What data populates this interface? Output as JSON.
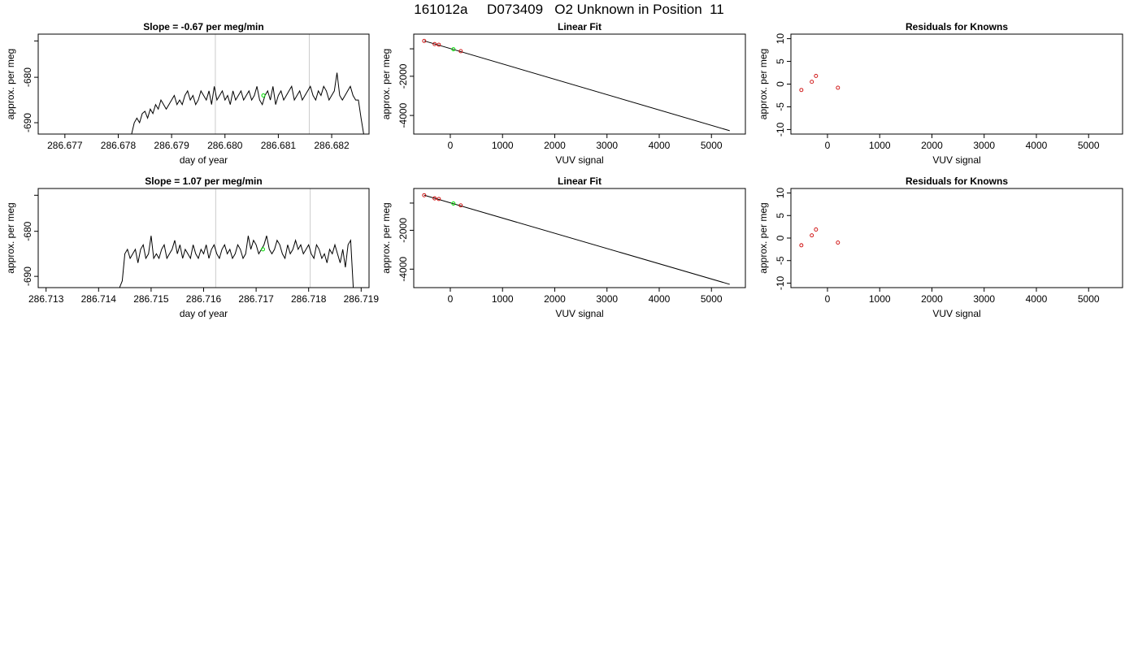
{
  "page_title": "161012a     D073409   O2 Unknown in Position  11",
  "colors": {
    "line": "#000000",
    "known_points": "#cc0000",
    "unknown_point": "#00dd00",
    "vline": "#cccccc"
  },
  "chart_data": [
    {
      "type": "line",
      "title": "Slope =  -0.67  per meg/min",
      "xlabel": "day of year",
      "ylabel": "approx. per meg",
      "xlim": [
        286.6765,
        286.6827
      ],
      "ylim": [
        -692.5,
        -670.5
      ],
      "xticks": [
        286.677,
        286.678,
        286.679,
        286.68,
        286.681,
        286.682
      ],
      "xtick_labels": [
        "286.677",
        "286.678",
        "286.679",
        "286.680",
        "286.681",
        "286.682"
      ],
      "yticks": [
        -690,
        -680,
        -672
      ],
      "ytick_labels": [
        "-690",
        "-680",
        ""
      ],
      "vlines": [
        286.67982,
        286.68158
      ],
      "unknown_point": {
        "x": 286.68072,
        "y": -684.0
      },
      "series": [
        {
          "x": [
            286.67825,
            286.6783,
            286.67835,
            286.6784,
            286.67845,
            286.6785,
            286.67855,
            286.6786,
            286.67865,
            286.6787,
            286.67875,
            286.6788,
            286.67885,
            286.6789,
            286.67895,
            286.679,
            286.67905,
            286.6791,
            286.67915,
            286.6792,
            286.67925,
            286.6793,
            286.67935,
            286.6794,
            286.67945,
            286.6795,
            286.67955,
            286.6796,
            286.67965,
            286.6797,
            286.67975,
            286.6798,
            286.67985,
            286.6799,
            286.67995,
            286.68,
            286.68005,
            286.6801,
            286.68015,
            286.6802,
            286.68025,
            286.6803,
            286.68035,
            286.6804,
            286.68045,
            286.6805,
            286.68055,
            286.6806,
            286.68065,
            286.6807,
            286.68075,
            286.6808,
            286.68085,
            286.6809,
            286.68095,
            286.681,
            286.68105,
            286.6811,
            286.68115,
            286.6812,
            286.68125,
            286.6813,
            286.68135,
            286.6814,
            286.68145,
            286.6815,
            286.68155,
            286.6816,
            286.68165,
            286.6817,
            286.68175,
            286.6818,
            286.68185,
            286.6819,
            286.68195,
            286.682,
            286.68205,
            286.6821,
            286.68215,
            286.6822,
            286.68225,
            286.6823,
            286.68235,
            286.6824,
            286.68245,
            286.6825,
            286.68255,
            286.6826
          ],
          "y": [
            -692.5,
            -690,
            -689,
            -690,
            -688,
            -687.5,
            -689,
            -687,
            -688,
            -686,
            -687,
            -685,
            -686,
            -687,
            -686,
            -685,
            -684,
            -686,
            -685,
            -686,
            -684,
            -683,
            -685,
            -684,
            -686,
            -685,
            -683,
            -684,
            -685,
            -683,
            -686,
            -682,
            -685,
            -684,
            -683,
            -685,
            -684,
            -686,
            -683,
            -685,
            -684,
            -683,
            -685,
            -684,
            -683,
            -685,
            -684,
            -682,
            -685,
            -686,
            -684,
            -683,
            -685,
            -682,
            -686,
            -684,
            -683,
            -685,
            -684,
            -683,
            -682,
            -685,
            -684,
            -683,
            -685,
            -684,
            -683,
            -682,
            -684,
            -685,
            -683,
            -684,
            -682,
            -683,
            -685,
            -684,
            -683,
            -679,
            -684,
            -685,
            -684,
            -683,
            -682,
            -684,
            -685,
            -685,
            -689,
            -692.5
          ]
        }
      ]
    },
    {
      "type": "scatter",
      "title": "Linear Fit",
      "xlabel": "VUV signal",
      "ylabel": "approx. per meg",
      "xlim": [
        -700,
        5650
      ],
      "ylim": [
        -4950,
        150
      ],
      "xticks": [
        0,
        1000,
        2000,
        3000,
        4000,
        5000
      ],
      "xtick_labels": [
        "0",
        "1000",
        "2000",
        "3000",
        "4000",
        "5000"
      ],
      "yticks": [
        -4000,
        -2000,
        -600
      ],
      "ytick_labels": [
        "-4000",
        "-2000",
        ""
      ],
      "fit_line": {
        "x": [
          -500,
          5350
        ],
        "y": [
          -195,
          -4780
        ]
      },
      "known_points": {
        "x": [
          -500,
          -300,
          -220,
          200
        ],
        "y": [
          -196,
          -357,
          -390,
          -720
        ]
      },
      "unknown_point": {
        "x": 60,
        "y": -622
      }
    },
    {
      "type": "scatter",
      "title": "Residuals for Knowns",
      "xlabel": "VUV signal",
      "ylabel": "approx. per meg",
      "xlim": [
        -700,
        5650
      ],
      "ylim": [
        -11,
        11
      ],
      "xticks": [
        0,
        1000,
        2000,
        3000,
        4000,
        5000
      ],
      "xtick_labels": [
        "0",
        "1000",
        "2000",
        "3000",
        "4000",
        "5000"
      ],
      "yticks": [
        -10,
        -5,
        0,
        5,
        10
      ],
      "ytick_labels": [
        "-10",
        "-5",
        "0",
        "5",
        "10"
      ],
      "known_points": {
        "x": [
          -500,
          -300,
          -220,
          200
        ],
        "y": [
          -1.3,
          0.5,
          1.8,
          -0.8
        ]
      }
    },
    {
      "type": "line",
      "title": "Slope =  1.07  per meg/min",
      "xlabel": "day of year",
      "ylabel": "approx. per meg",
      "xlim": [
        286.71285,
        286.71915
      ],
      "ylim": [
        -692.5,
        -670.5
      ],
      "xticks": [
        286.713,
        286.714,
        286.715,
        286.716,
        286.717,
        286.718,
        286.719
      ],
      "xtick_labels": [
        "286.713",
        "286.714",
        "286.715",
        "286.716",
        "286.717",
        "286.718",
        "286.719"
      ],
      "yticks": [
        -690,
        -680,
        -672
      ],
      "ytick_labels": [
        "-690",
        "-680",
        ""
      ],
      "vlines": [
        286.71623,
        286.71803
      ],
      "unknown_point": {
        "x": 286.71713,
        "y": -684.0
      },
      "series": [
        {
          "x": [
            286.7144,
            286.71445,
            286.7145,
            286.71455,
            286.7146,
            286.71465,
            286.7147,
            286.71475,
            286.7148,
            286.71485,
            286.7149,
            286.71495,
            286.715,
            286.71505,
            286.7151,
            286.71515,
            286.7152,
            286.71525,
            286.7153,
            286.71535,
            286.7154,
            286.71545,
            286.7155,
            286.71555,
            286.7156,
            286.71565,
            286.7157,
            286.71575,
            286.7158,
            286.71585,
            286.7159,
            286.71595,
            286.716,
            286.71605,
            286.7161,
            286.71615,
            286.7162,
            286.71625,
            286.7163,
            286.71635,
            286.7164,
            286.71645,
            286.7165,
            286.71655,
            286.7166,
            286.71665,
            286.7167,
            286.71675,
            286.7168,
            286.71685,
            286.7169,
            286.71695,
            286.717,
            286.71705,
            286.7171,
            286.71715,
            286.7172,
            286.71725,
            286.7173,
            286.71735,
            286.7174,
            286.71745,
            286.7175,
            286.71755,
            286.7176,
            286.71765,
            286.7177,
            286.71775,
            286.7178,
            286.71785,
            286.7179,
            286.71795,
            286.718,
            286.71805,
            286.7181,
            286.71815,
            286.7182,
            286.71825,
            286.7183,
            286.71835,
            286.7184,
            286.71845,
            286.7185,
            286.71855,
            286.7186,
            286.71865,
            286.7187,
            286.71875,
            286.7188,
            286.71885
          ],
          "y": [
            -692.5,
            -691,
            -685,
            -684,
            -686,
            -685,
            -684,
            -687,
            -684,
            -683,
            -686,
            -685,
            -681,
            -686,
            -685,
            -686,
            -684,
            -683,
            -686,
            -685,
            -684,
            -682,
            -685,
            -683,
            -686,
            -684,
            -685,
            -686,
            -683,
            -685,
            -686,
            -684,
            -685,
            -683,
            -686,
            -684,
            -683,
            -685,
            -686,
            -684,
            -683,
            -685,
            -684,
            -686,
            -685,
            -683,
            -684,
            -686,
            -685,
            -681,
            -684,
            -682,
            -683,
            -685,
            -684,
            -683,
            -681,
            -684,
            -685,
            -684,
            -682,
            -683,
            -685,
            -686,
            -683,
            -685,
            -684,
            -682,
            -684,
            -683,
            -685,
            -684,
            -683,
            -685,
            -686,
            -683,
            -684,
            -686,
            -685,
            -687,
            -684,
            -685,
            -683,
            -685,
            -687,
            -684,
            -688,
            -683,
            -682,
            -692.5
          ]
        }
      ]
    },
    {
      "type": "scatter",
      "title": "Linear Fit",
      "xlabel": "VUV signal",
      "ylabel": "approx. per meg",
      "xlim": [
        -700,
        5650
      ],
      "ylim": [
        -4950,
        150
      ],
      "xticks": [
        0,
        1000,
        2000,
        3000,
        4000,
        5000
      ],
      "xtick_labels": [
        "0",
        "1000",
        "2000",
        "3000",
        "4000",
        "5000"
      ],
      "yticks": [
        -4000,
        -2000,
        -600
      ],
      "ytick_labels": [
        "-4000",
        "-2000",
        ""
      ],
      "fit_line": {
        "x": [
          -500,
          5350
        ],
        "y": [
          -195,
          -4780
        ]
      },
      "known_points": {
        "x": [
          -500,
          -300,
          -220,
          200
        ],
        "y": [
          -196,
          -357,
          -390,
          -720
        ]
      },
      "unknown_point": {
        "x": 60,
        "y": -622
      }
    },
    {
      "type": "scatter",
      "title": "Residuals for Knowns",
      "xlabel": "VUV signal",
      "ylabel": "approx. per meg",
      "xlim": [
        -700,
        5650
      ],
      "ylim": [
        -11,
        11
      ],
      "xticks": [
        0,
        1000,
        2000,
        3000,
        4000,
        5000
      ],
      "xtick_labels": [
        "0",
        "1000",
        "2000",
        "3000",
        "4000",
        "5000"
      ],
      "yticks": [
        -10,
        -5,
        0,
        5,
        10
      ],
      "ytick_labels": [
        "-10",
        "-5",
        "0",
        "5",
        "10"
      ],
      "known_points": {
        "x": [
          -500,
          -300,
          -220,
          200
        ],
        "y": [
          -1.6,
          0.6,
          1.9,
          -1.0
        ]
      }
    }
  ]
}
